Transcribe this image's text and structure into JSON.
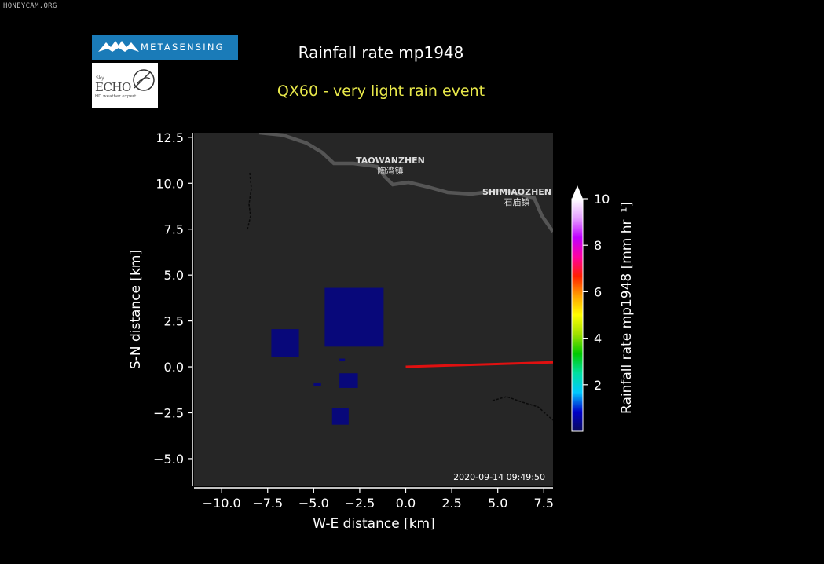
{
  "watermark": "HONEYCAM.ORG",
  "logos": {
    "top_brand": "METASENSING",
    "bottom_small": "Sky",
    "bottom_main": "ECHO",
    "bottom_tag": "HD weather expert"
  },
  "colors": {
    "background": "#000000",
    "plot_bg": "#262626",
    "rain_cells": "#08087a",
    "radar_beam": "#e01010",
    "title": "#ffffff",
    "subtitle": "#e8e84a",
    "road": "#555555"
  },
  "map_labels": [
    {
      "name": "TAOWANZHEN",
      "name_cn": "陶湾镇",
      "x_km": -0.8,
      "y_km": 11.0
    },
    {
      "name": "SHIMIAOZHEN",
      "name_cn": "石庙镇",
      "x_km": 6.2,
      "y_km": 9.2
    }
  ],
  "timestamp": "2020-09-14 09:49:50",
  "chart_data": {
    "type": "heatmap",
    "title": "Rainfall rate mp1948",
    "subtitle": "QX60 - very light rain event",
    "xlabel": "W-E distance [km]",
    "ylabel": "S-N distance [km]",
    "xlim": [
      -11.5,
      8.0
    ],
    "ylim": [
      -6.5,
      12.75
    ],
    "xticks": [
      -10.0,
      -7.5,
      -5.0,
      -2.5,
      0.0,
      2.5,
      5.0,
      7.5
    ],
    "xtick_labels": [
      "−10.0",
      "−7.5",
      "−5.0",
      "−2.5",
      "0.0",
      "2.5",
      "5.0",
      "7.5"
    ],
    "yticks": [
      12.5,
      10.0,
      7.5,
      5.0,
      2.5,
      0.0,
      -2.5,
      -5.0
    ],
    "ytick_labels": [
      "12.5",
      "10.0",
      "7.5",
      "5.0",
      "2.5",
      "0.0",
      "−2.5",
      "−5.0"
    ],
    "colorbar": {
      "label": "Rainfall rate mp1948 [mm hr⁻¹]",
      "range": [
        0,
        10
      ],
      "ticks": [
        2,
        4,
        6,
        8,
        10
      ],
      "tick_labels": [
        "2",
        "4",
        "6",
        "8",
        "10"
      ],
      "colormap": [
        "#0a0a5a",
        "#0000c8",
        "#00c8ff",
        "#00e0a0",
        "#00c800",
        "#a0e000",
        "#ffff00",
        "#ffa000",
        "#ff2000",
        "#ff00a0",
        "#c000ff",
        "#e6a0ff",
        "#ffffff"
      ]
    },
    "radar_beam": {
      "x_start_km": 0.0,
      "y_start_km": 0.0,
      "x_end_km": 8.0,
      "y_end_km": 0.25
    },
    "rain_cells": [
      {
        "x": [
          -7.3,
          -5.8
        ],
        "y": [
          0.55,
          2.05
        ],
        "value": 0.3
      },
      {
        "x": [
          -4.4,
          -1.2
        ],
        "y": [
          1.1,
          4.3
        ],
        "value": 0.3
      },
      {
        "x": [
          -5.0,
          -4.6
        ],
        "y": [
          -1.05,
          -0.85
        ],
        "value": 0.2
      },
      {
        "x": [
          -3.6,
          -2.6
        ],
        "y": [
          -1.15,
          -0.35
        ],
        "value": 0.2
      },
      {
        "x": [
          -4.0,
          -3.1
        ],
        "y": [
          -3.15,
          -2.25
        ],
        "value": 0.2
      },
      {
        "x": [
          -3.6,
          -3.3
        ],
        "y": [
          0.3,
          0.45
        ],
        "value": 0.2
      }
    ]
  }
}
